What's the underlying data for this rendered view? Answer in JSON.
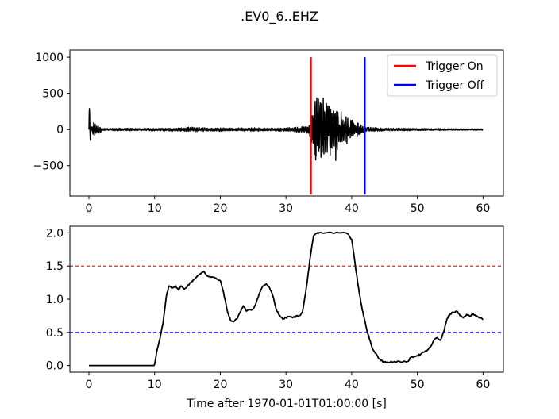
{
  "figure_title": ".EV0_6..EHZ",
  "colors": {
    "trace": "#000000",
    "trigger_on": "#ff0000",
    "trigger_off": "#0000ff",
    "threshold_on": "#ff0000",
    "threshold_off": "#0000ff"
  },
  "chart_data": [
    {
      "type": "line",
      "title": "",
      "xlabel": "",
      "ylabel": "",
      "xlim": [
        -2.9,
        63.1
      ],
      "ylim": [
        -920,
        1100
      ],
      "xticks": [
        0,
        10,
        20,
        30,
        40,
        50,
        60
      ],
      "xtick_labels": [
        "0",
        "10",
        "20",
        "30",
        "40",
        "50",
        "60"
      ],
      "yticks": [
        -500,
        0,
        500,
        1000
      ],
      "ytick_labels": [
        "−500",
        "0",
        "500",
        "1000"
      ],
      "grid": false,
      "legend_placement": "top-right",
      "trigger_lines": [
        {
          "name": "Trigger On",
          "x": 33.8,
          "y_range": [
            -900,
            1000
          ],
          "color": "#ff0000"
        },
        {
          "name": "Trigger Off",
          "x": 42.0,
          "y_range": [
            -900,
            1000
          ],
          "color": "#0000ff"
        }
      ],
      "series": [
        {
          "color": "#000000",
          "description_envelope": true,
          "x": [
            0,
            0.1,
            0.2,
            0.3,
            0.5,
            0.7,
            1.0,
            1.3,
            1.6,
            2.0,
            3,
            5,
            8,
            10,
            12,
            14,
            15.5,
            16.5,
            17.5,
            19,
            20,
            22,
            25,
            28,
            30,
            32,
            33,
            33.6,
            33.8,
            34.0,
            34.3,
            34.6,
            34.9,
            35.1,
            35.3,
            35.5,
            35.8,
            36.1,
            36.4,
            36.7,
            37.0,
            37.3,
            37.6,
            38.0,
            38.4,
            38.8,
            39.2,
            39.6,
            40.0,
            40.5,
            41,
            41.5,
            42,
            42.5,
            43,
            44,
            46,
            48,
            50,
            52,
            55,
            58,
            60
          ],
          "amp": [
            0,
            290,
            150,
            60,
            40,
            120,
            70,
            40,
            60,
            20,
            15,
            20,
            15,
            18,
            20,
            25,
            35,
            30,
            25,
            20,
            25,
            20,
            25,
            20,
            25,
            35,
            40,
            80,
            300,
            250,
            400,
            500,
            600,
            650,
            550,
            450,
            520,
            400,
            450,
            500,
            380,
            300,
            420,
            200,
            250,
            150,
            220,
            100,
            150,
            120,
            90,
            60,
            40,
            35,
            30,
            25,
            20,
            18,
            15,
            15,
            12,
            10,
            10
          ]
        }
      ]
    },
    {
      "type": "line",
      "title": "",
      "xlabel": "Time after 1970-01-01T01:00:00 [s]",
      "ylabel": "",
      "xlim": [
        -2.9,
        63.1
      ],
      "ylim": [
        -0.1,
        2.1
      ],
      "xticks": [
        0,
        10,
        20,
        30,
        40,
        50,
        60
      ],
      "xtick_labels": [
        "0",
        "10",
        "20",
        "30",
        "40",
        "50",
        "60"
      ],
      "yticks": [
        0.0,
        0.5,
        1.0,
        1.5,
        2.0
      ],
      "ytick_labels": [
        "0.0",
        "0.5",
        "1.0",
        "1.5",
        "2.0"
      ],
      "grid": false,
      "thresholds": [
        {
          "y": 1.5,
          "color": "#ff0000",
          "style": "dashed"
        },
        {
          "y": 0.5,
          "color": "#0000ff",
          "style": "dashed"
        }
      ],
      "series": [
        {
          "color": "#000000",
          "x": [
            0,
            9.9,
            10.0,
            10.3,
            10.8,
            11.3,
            11.8,
            12.2,
            12.7,
            13.2,
            13.6,
            14.0,
            14.5,
            15.0,
            15.5,
            16.0,
            16.5,
            17.0,
            17.5,
            18.0,
            18.5,
            19.0,
            19.5,
            20.0,
            20.5,
            21.0,
            21.3,
            21.6,
            22.0,
            22.5,
            23.0,
            23.5,
            24.0,
            24.5,
            25.0,
            25.5,
            26.0,
            26.5,
            27.0,
            27.5,
            28.0,
            28.5,
            29.0,
            29.5,
            30.0,
            30.5,
            31.0,
            31.5,
            32.0,
            32.5,
            33.0,
            33.4,
            33.8,
            34.2,
            34.6,
            35.0,
            36.0,
            37.0,
            38.0,
            39.0,
            39.5,
            40.0,
            40.3,
            40.7,
            41.0,
            41.4,
            41.8,
            42.2,
            42.7,
            43.2,
            43.7,
            44.2,
            44.7,
            45.0,
            45.5,
            46.5,
            47.5,
            48.5,
            49.0,
            49.5,
            50.0,
            50.5,
            51.0,
            51.5,
            52.0,
            52.5,
            53.0,
            53.5,
            54.0,
            54.5,
            55.0,
            55.5,
            56.0,
            56.5,
            57.0,
            57.5,
            58.0,
            58.5,
            59.0,
            59.5,
            60.0
          ],
          "y": [
            0.0,
            0.0,
            0.02,
            0.2,
            0.4,
            0.65,
            1.05,
            1.2,
            1.17,
            1.2,
            1.14,
            1.2,
            1.15,
            1.2,
            1.25,
            1.3,
            1.35,
            1.38,
            1.42,
            1.35,
            1.34,
            1.33,
            1.3,
            1.28,
            1.1,
            0.85,
            0.75,
            0.68,
            0.66,
            0.7,
            0.8,
            0.9,
            0.82,
            0.84,
            0.85,
            0.96,
            1.1,
            1.2,
            1.23,
            1.17,
            1.05,
            0.85,
            0.76,
            0.7,
            0.72,
            0.74,
            0.72,
            0.74,
            0.75,
            0.8,
            1.1,
            1.4,
            1.7,
            1.95,
            1.99,
            2.0,
            2.0,
            2.0,
            2.0,
            2.0,
            1.98,
            1.9,
            1.7,
            1.4,
            1.2,
            0.95,
            0.75,
            0.58,
            0.4,
            0.25,
            0.18,
            0.1,
            0.06,
            0.05,
            0.05,
            0.06,
            0.05,
            0.06,
            0.12,
            0.14,
            0.15,
            0.17,
            0.2,
            0.23,
            0.28,
            0.38,
            0.42,
            0.38,
            0.5,
            0.7,
            0.78,
            0.8,
            0.82,
            0.75,
            0.72,
            0.77,
            0.74,
            0.78,
            0.75,
            0.72,
            0.69
          ]
        }
      ]
    }
  ],
  "legend": [
    {
      "label": "Trigger On",
      "color": "#ff0000"
    },
    {
      "label": "Trigger Off",
      "color": "#0000ff"
    }
  ]
}
